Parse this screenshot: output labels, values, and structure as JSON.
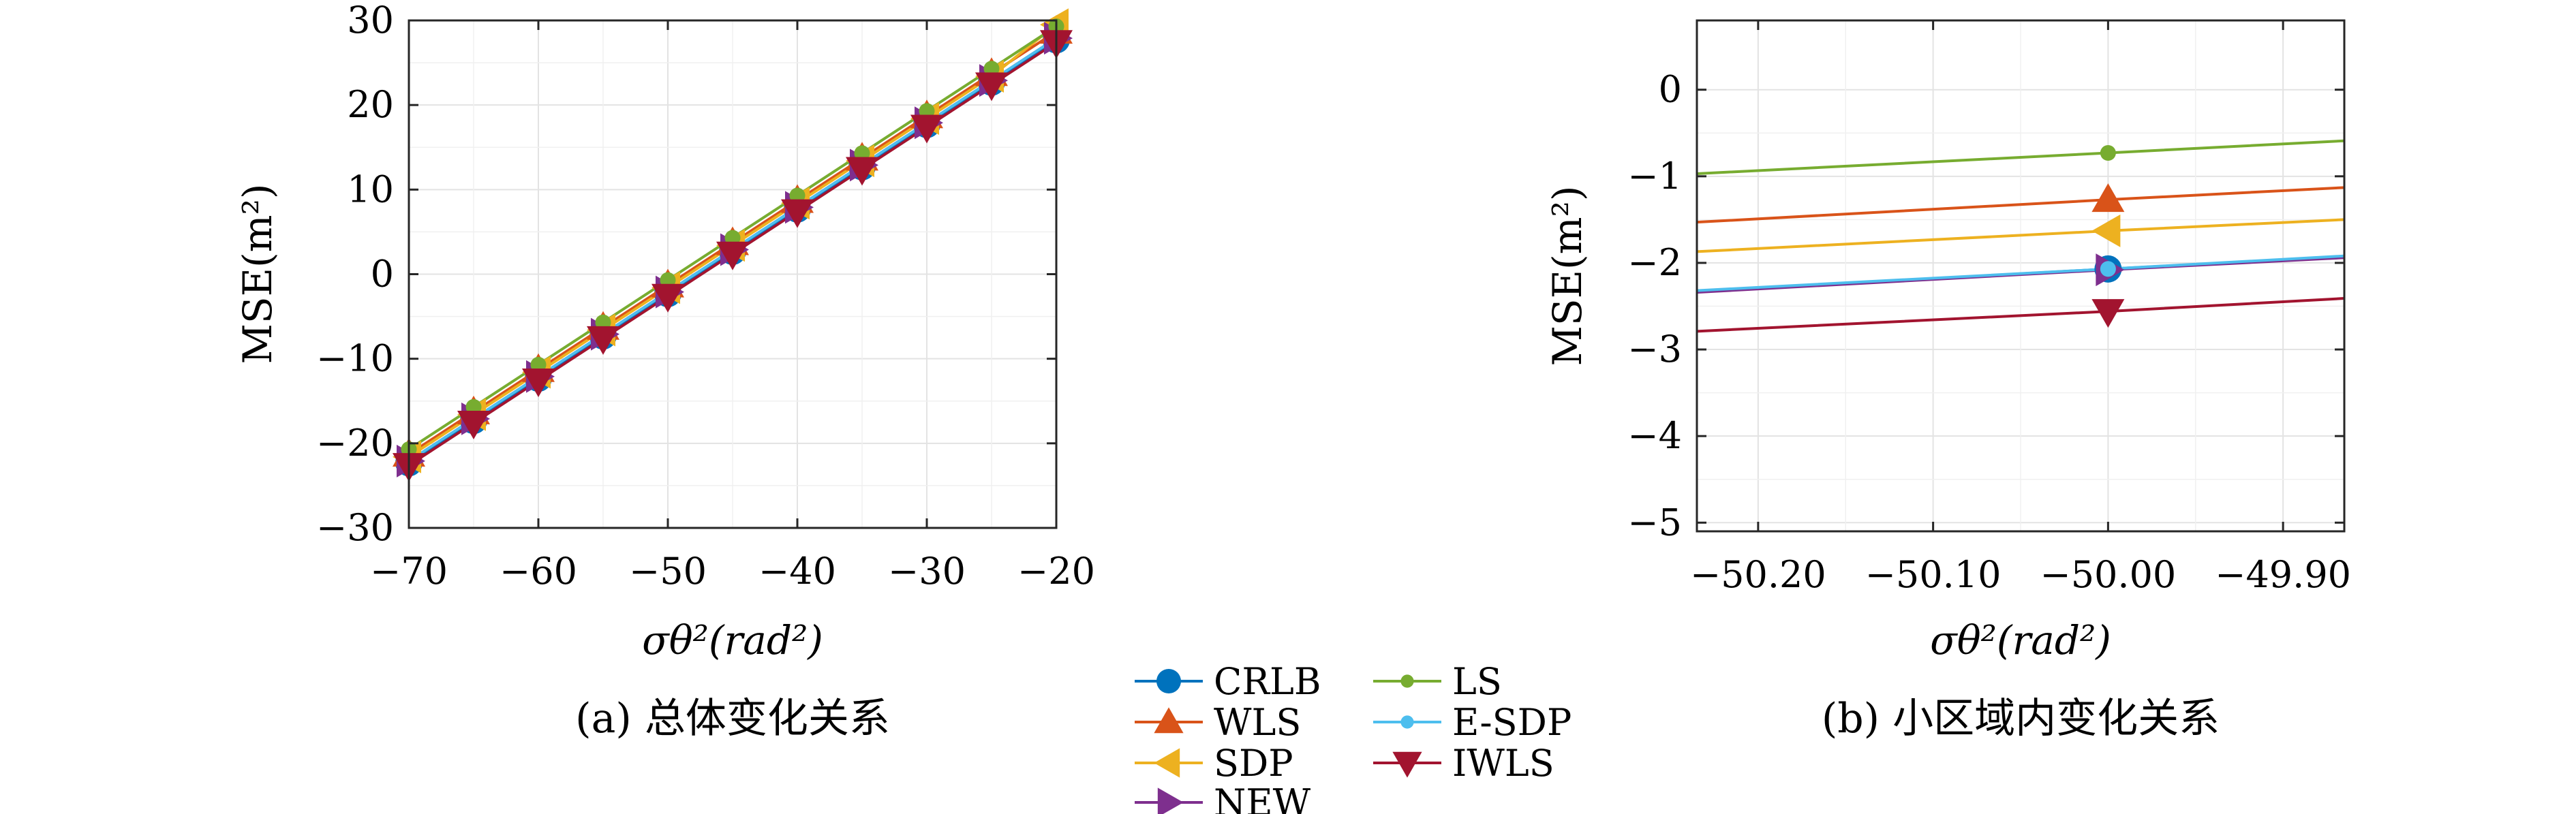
{
  "figure": {
    "legend": [
      {
        "name": "CRLB",
        "color": "#0072BD",
        "marker": "circle"
      },
      {
        "name": "WLS",
        "color": "#D95319",
        "marker": "triangle-up"
      },
      {
        "name": "SDP",
        "color": "#EDB120",
        "marker": "triangle-left"
      },
      {
        "name": "NEW",
        "color": "#7E2F8E",
        "marker": "triangle-right"
      },
      {
        "name": "LS",
        "color": "#77AC30",
        "marker": "dot"
      },
      {
        "name": "E-SDP",
        "color": "#4DBEEE",
        "marker": "dot"
      },
      {
        "name": "IWLS",
        "color": "#A2142F",
        "marker": "triangle-down"
      }
    ]
  },
  "chart_data": [
    {
      "type": "line",
      "caption": "(a) 总体变化关系",
      "xlabel": "σθ²(rad²)",
      "ylabel": "MSE(m²)",
      "xlim": [
        -70,
        -20
      ],
      "ylim": [
        -30,
        30
      ],
      "xticks": [
        -70,
        -60,
        -50,
        -40,
        -30,
        -20
      ],
      "xtick_labels": [
        "−70",
        "−60",
        "−50",
        "−40",
        "−30",
        "−20"
      ],
      "yticks": [
        -30,
        -20,
        -10,
        0,
        10,
        20,
        30
      ],
      "ytick_labels": [
        "−30",
        "−20",
        "−10",
        "0",
        "10",
        "20",
        "30"
      ],
      "grid": true,
      "x": [
        -70,
        -65,
        -60,
        -55,
        -50,
        -45,
        -40,
        -35,
        -30,
        -25,
        -20
      ],
      "series": [
        {
          "name": "CRLB",
          "values": [
            -22.3,
            -17.3,
            -12.3,
            -7.3,
            -2.3,
            2.7,
            7.7,
            12.7,
            17.7,
            22.7,
            27.7
          ]
        },
        {
          "name": "WLS",
          "values": [
            -21.3,
            -16.3,
            -11.3,
            -6.3,
            -1.3,
            3.7,
            8.7,
            13.7,
            18.7,
            23.7,
            28.7
          ]
        },
        {
          "name": "SDP",
          "values": [
            -21.6,
            -16.6,
            -11.6,
            -6.6,
            -1.6,
            3.4,
            8.4,
            13.4,
            18.4,
            23.4,
            29.5
          ]
        },
        {
          "name": "NEW",
          "values": [
            -22.1,
            -17.1,
            -12.1,
            -7.1,
            -2.1,
            2.9,
            7.9,
            12.9,
            17.9,
            22.9,
            27.9
          ]
        },
        {
          "name": "LS",
          "values": [
            -20.7,
            -15.7,
            -10.7,
            -5.7,
            -0.7,
            4.3,
            9.3,
            14.3,
            19.3,
            24.3,
            29.3
          ]
        },
        {
          "name": "E-SDP",
          "values": [
            -22.1,
            -17.1,
            -12.1,
            -7.1,
            -2.1,
            2.9,
            7.9,
            12.9,
            17.9,
            22.9,
            27.9
          ]
        },
        {
          "name": "IWLS",
          "values": [
            -22.6,
            -17.6,
            -12.6,
            -7.6,
            -2.6,
            2.4,
            7.4,
            12.4,
            17.4,
            22.4,
            27.4
          ]
        }
      ]
    },
    {
      "type": "line",
      "caption": "(b) 小区域内变化关系",
      "xlabel": "σθ²(rad²)",
      "ylabel": "MSE(m²)",
      "xlim": [
        -50.235,
        -49.865
      ],
      "ylim": [
        -5.1,
        0.8
      ],
      "xticks": [
        -50.2,
        -50.1,
        -50.0,
        -49.9
      ],
      "xtick_labels": [
        "−50.20",
        "−50.10",
        "−50.00",
        "−49.90"
      ],
      "yticks": [
        -5,
        -4,
        -3,
        -2,
        -1,
        0
      ],
      "ytick_labels": [
        "−5",
        "−4",
        "−3",
        "−2",
        "−1",
        "0"
      ],
      "grid": true,
      "x": [
        -50.235,
        -50.0,
        -49.865
      ],
      "series": [
        {
          "name": "CRLB",
          "values": [
            -2.33,
            -2.07,
            -1.93
          ]
        },
        {
          "name": "WLS",
          "values": [
            -1.53,
            -1.27,
            -1.13
          ]
        },
        {
          "name": "SDP",
          "values": [
            -1.87,
            -1.63,
            -1.5
          ]
        },
        {
          "name": "NEW",
          "values": [
            -2.34,
            -2.08,
            -1.94
          ]
        },
        {
          "name": "LS",
          "values": [
            -0.97,
            -0.73,
            -0.59
          ]
        },
        {
          "name": "E-SDP",
          "values": [
            -2.32,
            -2.07,
            -1.92
          ]
        },
        {
          "name": "IWLS",
          "values": [
            -2.79,
            -2.56,
            -2.41
          ]
        }
      ]
    }
  ]
}
